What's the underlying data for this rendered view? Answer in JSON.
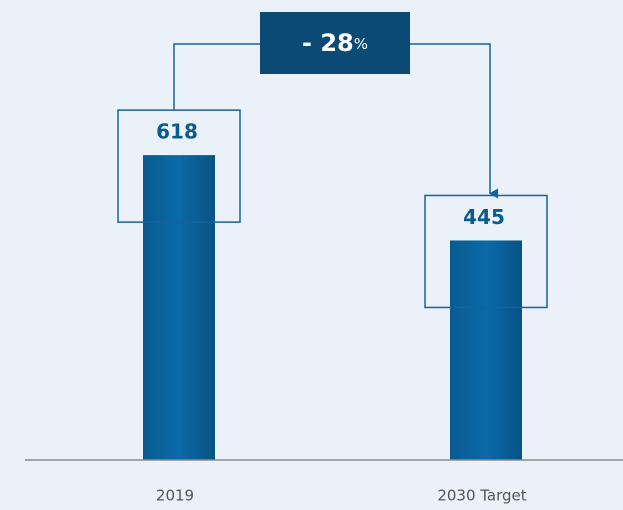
{
  "chart_data": {
    "type": "bar",
    "categories": [
      "2019",
      "2030 Target"
    ],
    "values": [
      618,
      445
    ],
    "color": "#0766a3",
    "ylim": [
      0,
      900
    ],
    "annotation": [
      "- 28",
      "%"
    ]
  }
}
